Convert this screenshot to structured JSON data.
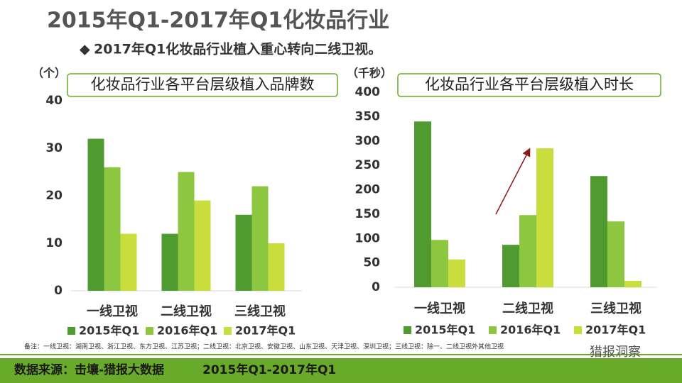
{
  "slide": {
    "title": "2015年Q1-2017年Q1化妆品行业",
    "subtitle": "2017年Q1化妆品行业植入重心转向二线卫视。",
    "note": "备注：一线卫视：湖南卫视、浙江卫视、东方卫视、江苏卫视；二线卫视：北京卫视、安徽卫视、山东卫视、天津卫视、深圳卫视；三线卫视：除一、二线卫视外其他卫视",
    "source": "数据来源：击壤-猎报大数据",
    "period": "2015年Q1-2017年Q1",
    "watermark": "猎报洞察"
  },
  "chart_data": [
    {
      "type": "bar",
      "title": "化妆品行业各平台层级植入品牌数",
      "unit_label": "（个）",
      "categories": [
        "一线卫视",
        "二线卫视",
        "三线卫视"
      ],
      "series": [
        {
          "name": "2015年Q1",
          "color": "#4f9b2f",
          "values": [
            32,
            12,
            16
          ]
        },
        {
          "name": "2016年Q1",
          "color": "#8dc63f",
          "values": [
            26,
            25,
            22
          ]
        },
        {
          "name": "2017年Q1",
          "color": "#c9dd3c",
          "values": [
            12,
            19,
            10
          ]
        }
      ],
      "ylim": [
        0,
        40
      ],
      "yticks": [
        0,
        10,
        20,
        30,
        40
      ]
    },
    {
      "type": "bar",
      "title": "化妆品行业各平台层级植入时长",
      "unit_label": "（千秒）",
      "categories": [
        "一线卫视",
        "二线卫视",
        "三线卫视"
      ],
      "series": [
        {
          "name": "2015年Q1",
          "color": "#4f9b2f",
          "values": [
            340,
            87,
            228
          ]
        },
        {
          "name": "2016年Q1",
          "color": "#8dc63f",
          "values": [
            97,
            148,
            135
          ]
        },
        {
          "name": "2017年Q1",
          "color": "#c9dd3c",
          "values": [
            57,
            285,
            13
          ]
        }
      ],
      "ylim": [
        0,
        400
      ],
      "yticks": [
        0,
        50,
        100,
        150,
        200,
        250,
        300,
        350,
        400
      ]
    }
  ]
}
